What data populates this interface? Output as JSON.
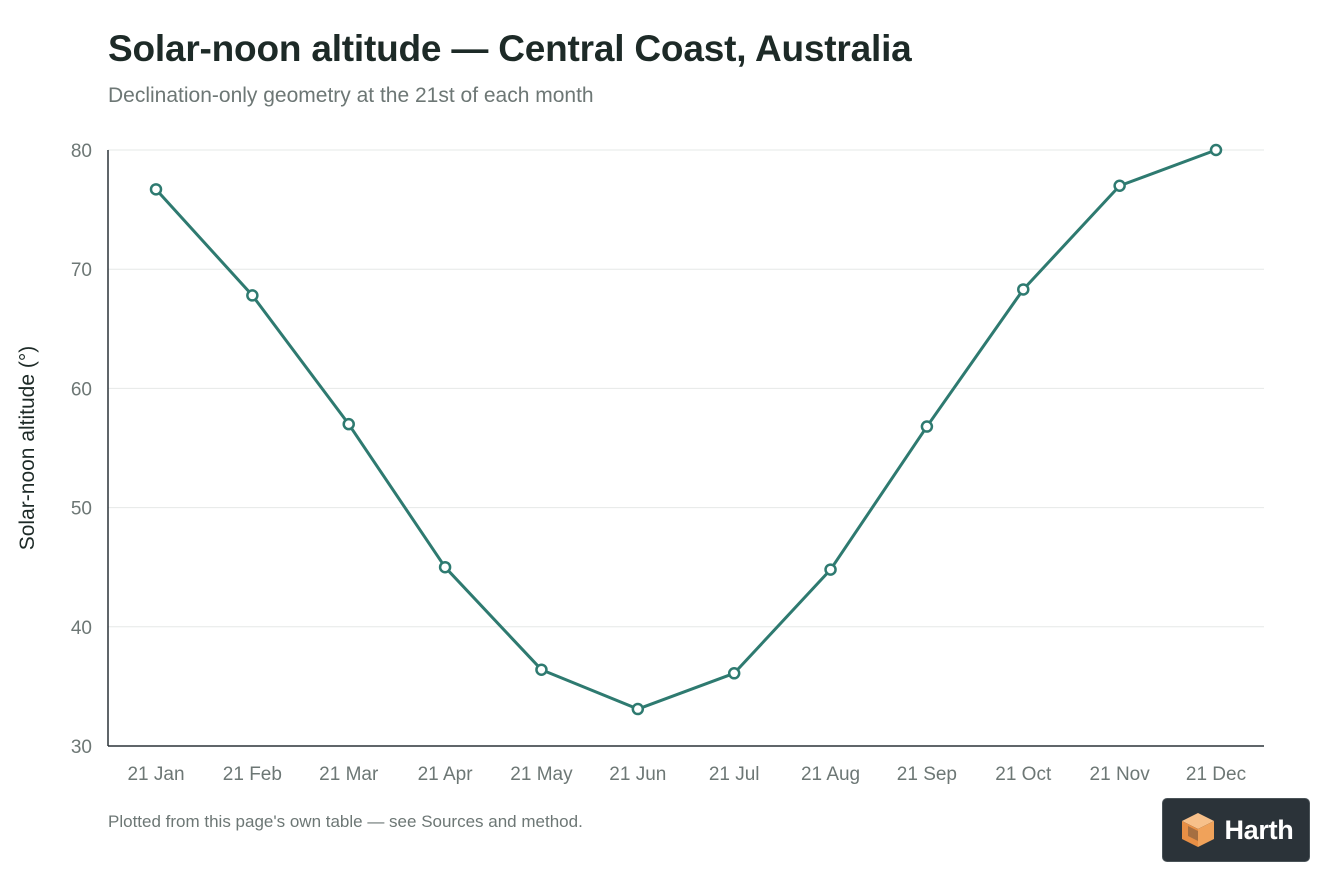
{
  "chart_data": {
    "type": "line",
    "title": "Solar-noon altitude — Central Coast, Australia",
    "subtitle": "Declination-only geometry at the 21st of each month",
    "xlabel": "",
    "ylabel": "Solar-noon altitude (°)",
    "categories": [
      "21 Jan",
      "21 Feb",
      "21 Mar",
      "21 Apr",
      "21 May",
      "21 Jun",
      "21 Jul",
      "21 Aug",
      "21 Sep",
      "21 Oct",
      "21 Nov",
      "21 Dec"
    ],
    "series": [
      {
        "values": [
          76.7,
          67.8,
          57.0,
          45.0,
          36.4,
          33.1,
          36.1,
          44.8,
          56.8,
          68.3,
          77.0,
          80.0
        ],
        "color": "#2e7a70"
      }
    ],
    "ylim": [
      30,
      80
    ],
    "yticks": [
      30,
      40,
      50,
      60,
      70,
      80
    ],
    "grid": true,
    "legend": "none"
  },
  "footnote": "Plotted from this page's own table — see Sources and method.",
  "brand": {
    "logo_text": "Harth",
    "logo_icon": "cube-icon",
    "logo_color": "#f0a25a"
  }
}
